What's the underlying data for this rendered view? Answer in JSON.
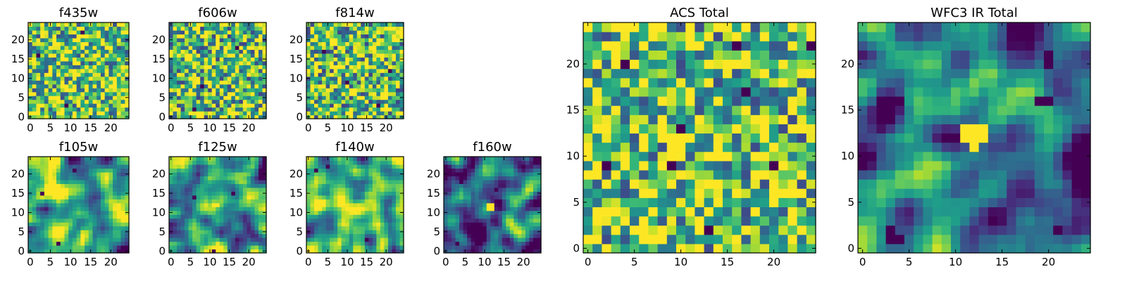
{
  "chart_data": [
    {
      "type": "heatmap",
      "title": "f435w",
      "x_ticks": [
        0,
        5,
        10,
        15,
        20
      ],
      "y_ticks": [
        0,
        5,
        10,
        15,
        20
      ],
      "grid_size": [
        25,
        25
      ],
      "xlim": [
        -0.5,
        24.5
      ],
      "ylim": [
        -0.5,
        24.5
      ],
      "colormap": "viridis",
      "texture": "white-noise",
      "value_range": [
        0,
        1
      ],
      "bright_bias": 0.25,
      "seed": 11,
      "deep_pixels": [
        [
          2,
          16
        ],
        [
          13,
          22
        ],
        [
          9,
          3
        ]
      ],
      "hot_blob": []
    },
    {
      "type": "heatmap",
      "title": "f606w",
      "x_ticks": [
        0,
        5,
        10,
        15,
        20
      ],
      "y_ticks": [
        0,
        5,
        10,
        15,
        20
      ],
      "grid_size": [
        25,
        25
      ],
      "xlim": [
        -0.5,
        24.5
      ],
      "ylim": [
        -0.5,
        24.5
      ],
      "colormap": "viridis",
      "texture": "white-noise",
      "value_range": [
        0,
        1
      ],
      "bright_bias": 0.2,
      "seed": 23,
      "deep_pixels": [
        [
          6,
          2
        ],
        [
          8,
          8
        ],
        [
          17,
          18
        ]
      ],
      "hot_blob": []
    },
    {
      "type": "heatmap",
      "title": "f814w",
      "x_ticks": [
        0,
        5,
        10,
        15,
        20
      ],
      "y_ticks": [
        0,
        5,
        10,
        15,
        20
      ],
      "grid_size": [
        25,
        25
      ],
      "xlim": [
        -0.5,
        24.5
      ],
      "ylim": [
        -0.5,
        24.5
      ],
      "colormap": "viridis",
      "texture": "white-noise",
      "value_range": [
        0,
        1
      ],
      "bright_bias": 0.2,
      "seed": 37,
      "deep_pixels": [
        [
          4,
          17
        ],
        [
          18,
          3
        ],
        [
          10,
          9
        ],
        [
          21,
          12
        ]
      ],
      "hot_blob": []
    },
    {
      "type": "heatmap",
      "title": "f105w",
      "x_ticks": [
        0,
        5,
        10,
        15,
        20
      ],
      "y_ticks": [
        0,
        5,
        10,
        15,
        20
      ],
      "grid_size": [
        25,
        25
      ],
      "xlim": [
        -0.5,
        24.5
      ],
      "ylim": [
        -0.5,
        24.5
      ],
      "colormap": "viridis",
      "texture": "smooth",
      "value_range": [
        0,
        1
      ],
      "bright_bias": 0.05,
      "seed": 41,
      "deep_pixels": [
        [
          11,
          21
        ],
        [
          3,
          15
        ],
        [
          7,
          2
        ]
      ],
      "hot_blob": []
    },
    {
      "type": "heatmap",
      "title": "f125w",
      "x_ticks": [
        0,
        5,
        10,
        15,
        20
      ],
      "y_ticks": [
        0,
        5,
        10,
        15,
        20
      ],
      "grid_size": [
        25,
        25
      ],
      "xlim": [
        -0.5,
        24.5
      ],
      "ylim": [
        -0.5,
        24.5
      ],
      "colormap": "viridis",
      "texture": "smooth",
      "value_range": [
        0,
        1
      ],
      "bright_bias": 0.0,
      "seed": 53,
      "deep_pixels": [
        [
          16,
          15
        ],
        [
          6,
          14
        ],
        [
          11,
          0
        ]
      ],
      "hot_blob": [
        [
          11,
          12
        ],
        [
          12,
          12
        ]
      ]
    },
    {
      "type": "heatmap",
      "title": "f140w",
      "x_ticks": [
        0,
        5,
        10,
        15,
        20
      ],
      "y_ticks": [
        0,
        5,
        10,
        15,
        20
      ],
      "grid_size": [
        25,
        25
      ],
      "xlim": [
        -0.5,
        24.5
      ],
      "ylim": [
        -0.5,
        24.5
      ],
      "colormap": "viridis",
      "texture": "smooth",
      "value_range": [
        0,
        1
      ],
      "bright_bias": 0.08,
      "seed": 67,
      "deep_pixels": [
        [
          2,
          21
        ],
        [
          5,
          22
        ],
        [
          15,
          3
        ]
      ],
      "hot_blob": []
    },
    {
      "type": "heatmap",
      "title": "f160w",
      "x_ticks": [
        0,
        5,
        10,
        15,
        20
      ],
      "y_ticks": [
        0,
        5,
        10,
        15,
        20
      ],
      "grid_size": [
        25,
        25
      ],
      "xlim": [
        -0.5,
        24.5
      ],
      "ylim": [
        -0.5,
        24.5
      ],
      "colormap": "viridis",
      "texture": "smooth",
      "value_range": [
        0,
        1
      ],
      "bright_bias": -0.22,
      "seed": 79,
      "deep_pixels": [
        [
          4,
          18
        ],
        [
          13,
          16
        ],
        [
          3,
          2
        ]
      ],
      "hot_blob": [
        [
          11,
          12
        ],
        [
          12,
          12
        ],
        [
          11,
          11
        ],
        [
          12,
          11
        ]
      ]
    },
    {
      "type": "heatmap",
      "title": "ACS Total",
      "x_ticks": [
        0,
        5,
        10,
        15,
        20
      ],
      "y_ticks": [
        0,
        5,
        10,
        15,
        20
      ],
      "grid_size": [
        25,
        25
      ],
      "xlim": [
        -0.5,
        24.5
      ],
      "ylim": [
        -0.5,
        24.5
      ],
      "colormap": "viridis",
      "texture": "white-noise",
      "value_range": [
        0,
        1
      ],
      "bright_bias": 0.22,
      "seed": 97,
      "deep_pixels": [
        [
          16,
          22
        ],
        [
          24,
          22
        ],
        [
          4,
          20
        ],
        [
          17,
          17
        ],
        [
          10,
          13
        ],
        [
          2,
          9
        ],
        [
          9,
          9
        ],
        [
          20,
          9
        ],
        [
          13,
          2
        ]
      ],
      "hot_blob": []
    },
    {
      "type": "heatmap",
      "title": "WFC3 IR Total",
      "x_ticks": [
        0,
        5,
        10,
        15,
        20
      ],
      "y_ticks": [
        0,
        5,
        10,
        15,
        20
      ],
      "grid_size": [
        25,
        25
      ],
      "xlim": [
        -0.5,
        24.5
      ],
      "ylim": [
        -0.5,
        24.5
      ],
      "colormap": "viridis",
      "texture": "smooth",
      "value_range": [
        0,
        1
      ],
      "bright_bias": -0.12,
      "seed": 113,
      "deep_pixels": [
        [
          20,
          21
        ],
        [
          20,
          20
        ],
        [
          4,
          16
        ],
        [
          19,
          16
        ],
        [
          20,
          16
        ],
        [
          0,
          9
        ],
        [
          21,
          2
        ],
        [
          3,
          2
        ],
        [
          3,
          1
        ],
        [
          4,
          1
        ]
      ],
      "hot_blob": [
        [
          11,
          13
        ],
        [
          12,
          13
        ],
        [
          13,
          13
        ],
        [
          11,
          12
        ],
        [
          12,
          12
        ],
        [
          13,
          12
        ],
        [
          12,
          11
        ]
      ]
    }
  ]
}
